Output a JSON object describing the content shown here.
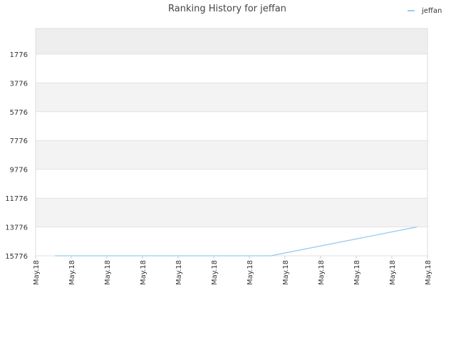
{
  "chart_data": {
    "type": "line",
    "title": "Ranking History for jeffan",
    "x": [
      0.54,
      6.6,
      10.7
    ],
    "series": [
      {
        "name": "jeffan",
        "color": "#99ccee",
        "values": [
          15776,
          15776,
          13776
        ]
      }
    ],
    "xlim": [
      0,
      11
    ],
    "xticks": [
      {
        "value": 0,
        "label": "May.18"
      },
      {
        "value": 1,
        "label": "May.18"
      },
      {
        "value": 2,
        "label": "May.18"
      },
      {
        "value": 3,
        "label": "May.18"
      },
      {
        "value": 4,
        "label": "May.18"
      },
      {
        "value": 5,
        "label": "May.18"
      },
      {
        "value": 6,
        "label": "May.18"
      },
      {
        "value": 7,
        "label": "May.18"
      },
      {
        "value": 8,
        "label": "May.18"
      },
      {
        "value": 9,
        "label": "May.18"
      },
      {
        "value": 10,
        "label": "May.18"
      },
      {
        "value": 11,
        "label": "May.18"
      }
    ],
    "ylim": [
      15776,
      0
    ],
    "yticks": [
      1776,
      3776,
      5776,
      7776,
      9776,
      11776,
      13776,
      15776
    ],
    "grid": true,
    "legend": "top-right"
  }
}
